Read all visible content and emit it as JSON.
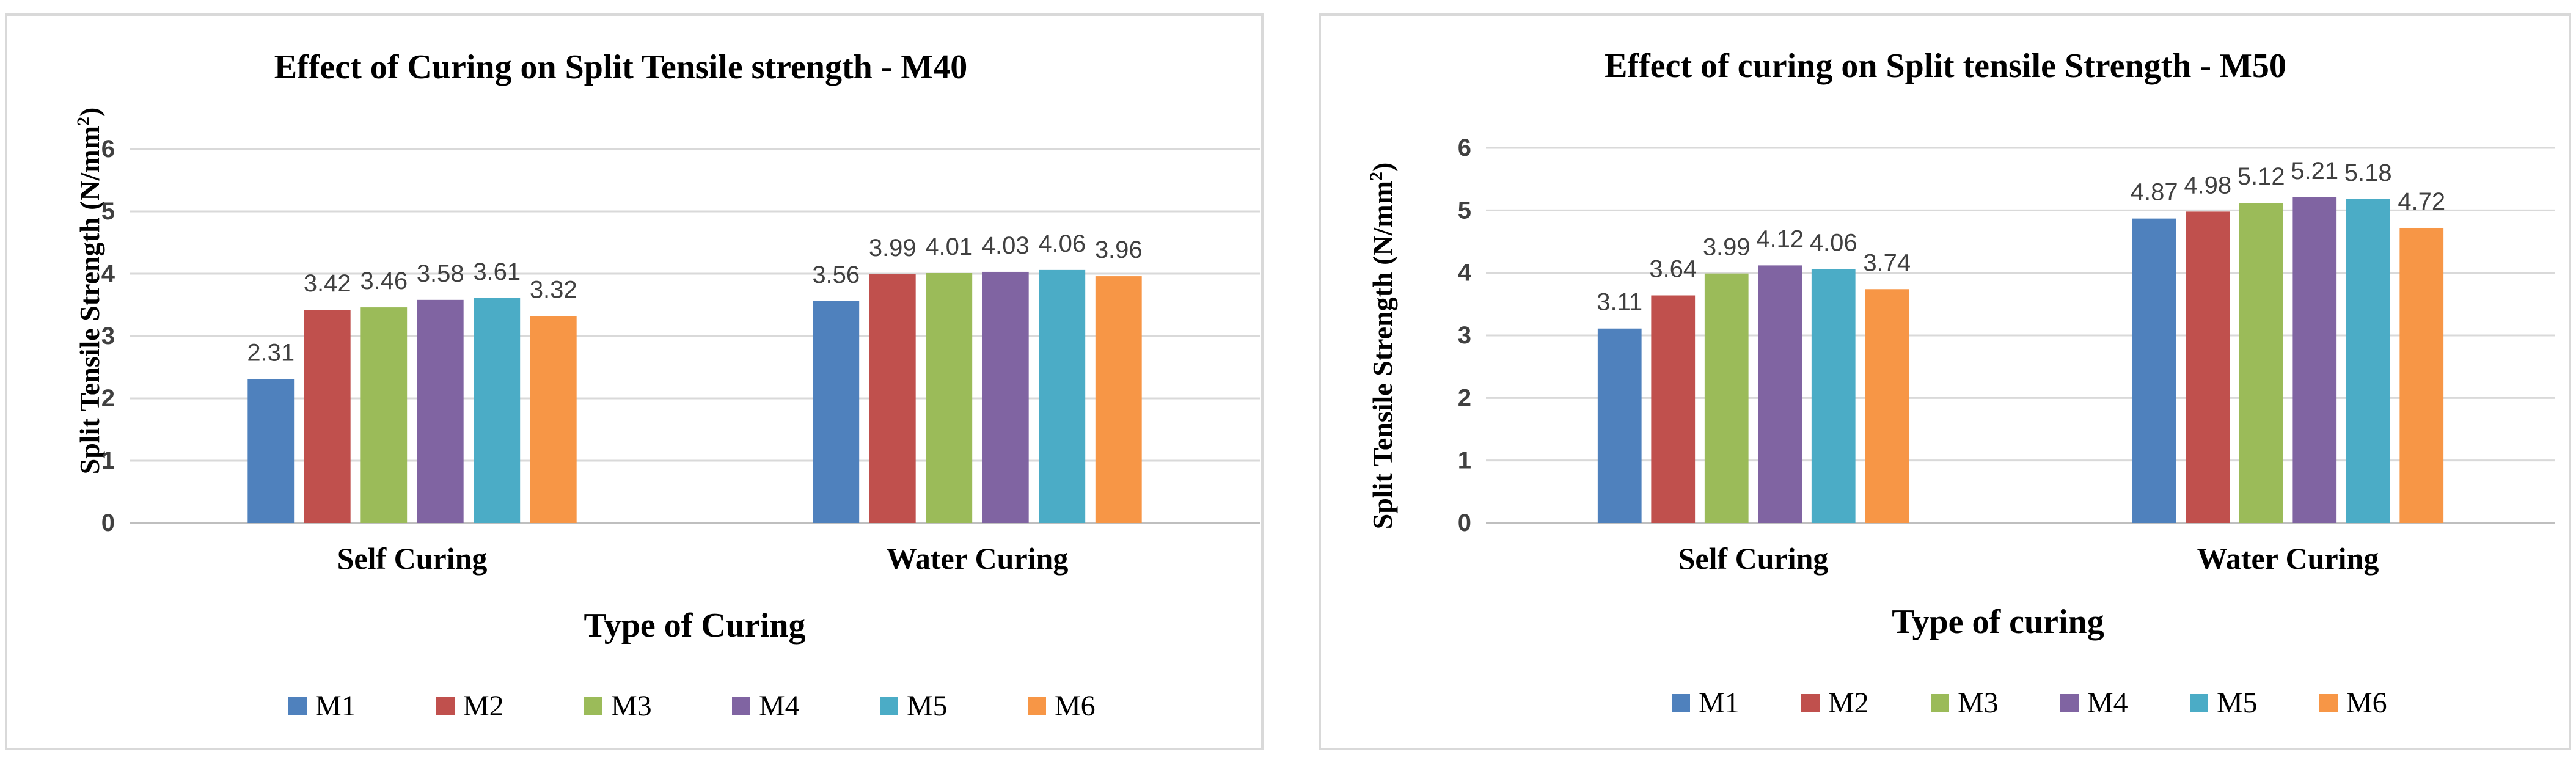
{
  "chart_data": [
    {
      "type": "bar",
      "title": "Effect of Curing on Split Tensile strength - M40",
      "xlabel": "Type of Curing",
      "ylabel": "Split  Tensile Strength (N/mm",
      "ylabel_sup": "2",
      "ylabel_close": ")",
      "ylim": [
        0,
        6
      ],
      "yticks": [
        "0",
        "1",
        "2",
        "3",
        "4",
        "5",
        "6"
      ],
      "grid": true,
      "legend": "bottom",
      "categories": [
        "Self Curing",
        "Water Curing"
      ],
      "series": [
        {
          "name": "M1",
          "color": "#4f81bd",
          "values": [
            2.31,
            3.56
          ],
          "labels": [
            "2.31",
            "3.56"
          ]
        },
        {
          "name": "M2",
          "color": "#c0504d",
          "values": [
            3.42,
            3.99
          ],
          "labels": [
            "3.42",
            "3.99"
          ]
        },
        {
          "name": "M3",
          "color": "#9bbb59",
          "values": [
            3.46,
            4.01
          ],
          "labels": [
            "3.46",
            "4.01"
          ]
        },
        {
          "name": "M4",
          "color": "#8064a2",
          "values": [
            3.58,
            4.03
          ],
          "labels": [
            "3.58",
            "4.03"
          ]
        },
        {
          "name": "M5",
          "color": "#4bacc6",
          "values": [
            3.61,
            4.06
          ],
          "labels": [
            "3.61",
            "4.06"
          ]
        },
        {
          "name": "M6",
          "color": "#f79646",
          "values": [
            3.32,
            3.96
          ],
          "labels": [
            "3.32",
            "3.96"
          ]
        }
      ]
    },
    {
      "type": "bar",
      "title": "Effect of curing on Split tensile Strength - M50",
      "xlabel": "Type of curing",
      "ylabel": "Split Tensile Strength (N/mm",
      "ylabel_sup": "2",
      "ylabel_close": ")",
      "ylim": [
        0,
        6
      ],
      "yticks": [
        "0",
        "1",
        "2",
        "3",
        "4",
        "5",
        "6"
      ],
      "grid": true,
      "legend": "bottom",
      "categories": [
        "Self Curing",
        "Water Curing"
      ],
      "series": [
        {
          "name": "M1",
          "color": "#4f81bd",
          "values": [
            3.11,
            4.87
          ],
          "labels": [
            "3.11",
            "4.87"
          ]
        },
        {
          "name": "M2",
          "color": "#c0504d",
          "values": [
            3.64,
            4.98
          ],
          "labels": [
            "3.64",
            "4.98"
          ]
        },
        {
          "name": "M3",
          "color": "#9bbb59",
          "values": [
            3.99,
            5.12
          ],
          "labels": [
            "3.99",
            "5.12"
          ]
        },
        {
          "name": "M4",
          "color": "#8064a2",
          "values": [
            4.12,
            5.21
          ],
          "labels": [
            "4.12",
            "5.21"
          ]
        },
        {
          "name": "M5",
          "color": "#4bacc6",
          "values": [
            4.06,
            5.18
          ],
          "labels": [
            "4.06",
            "5.18"
          ]
        },
        {
          "name": "M6",
          "color": "#f79646",
          "values": [
            3.74,
            4.72
          ],
          "labels": [
            "3.74",
            "4.72"
          ]
        }
      ]
    }
  ],
  "colors": {
    "grid": "#d9d9d9",
    "axis": "#bfbfbf",
    "tick_text": "#404040",
    "border": "#d9d9d9"
  }
}
